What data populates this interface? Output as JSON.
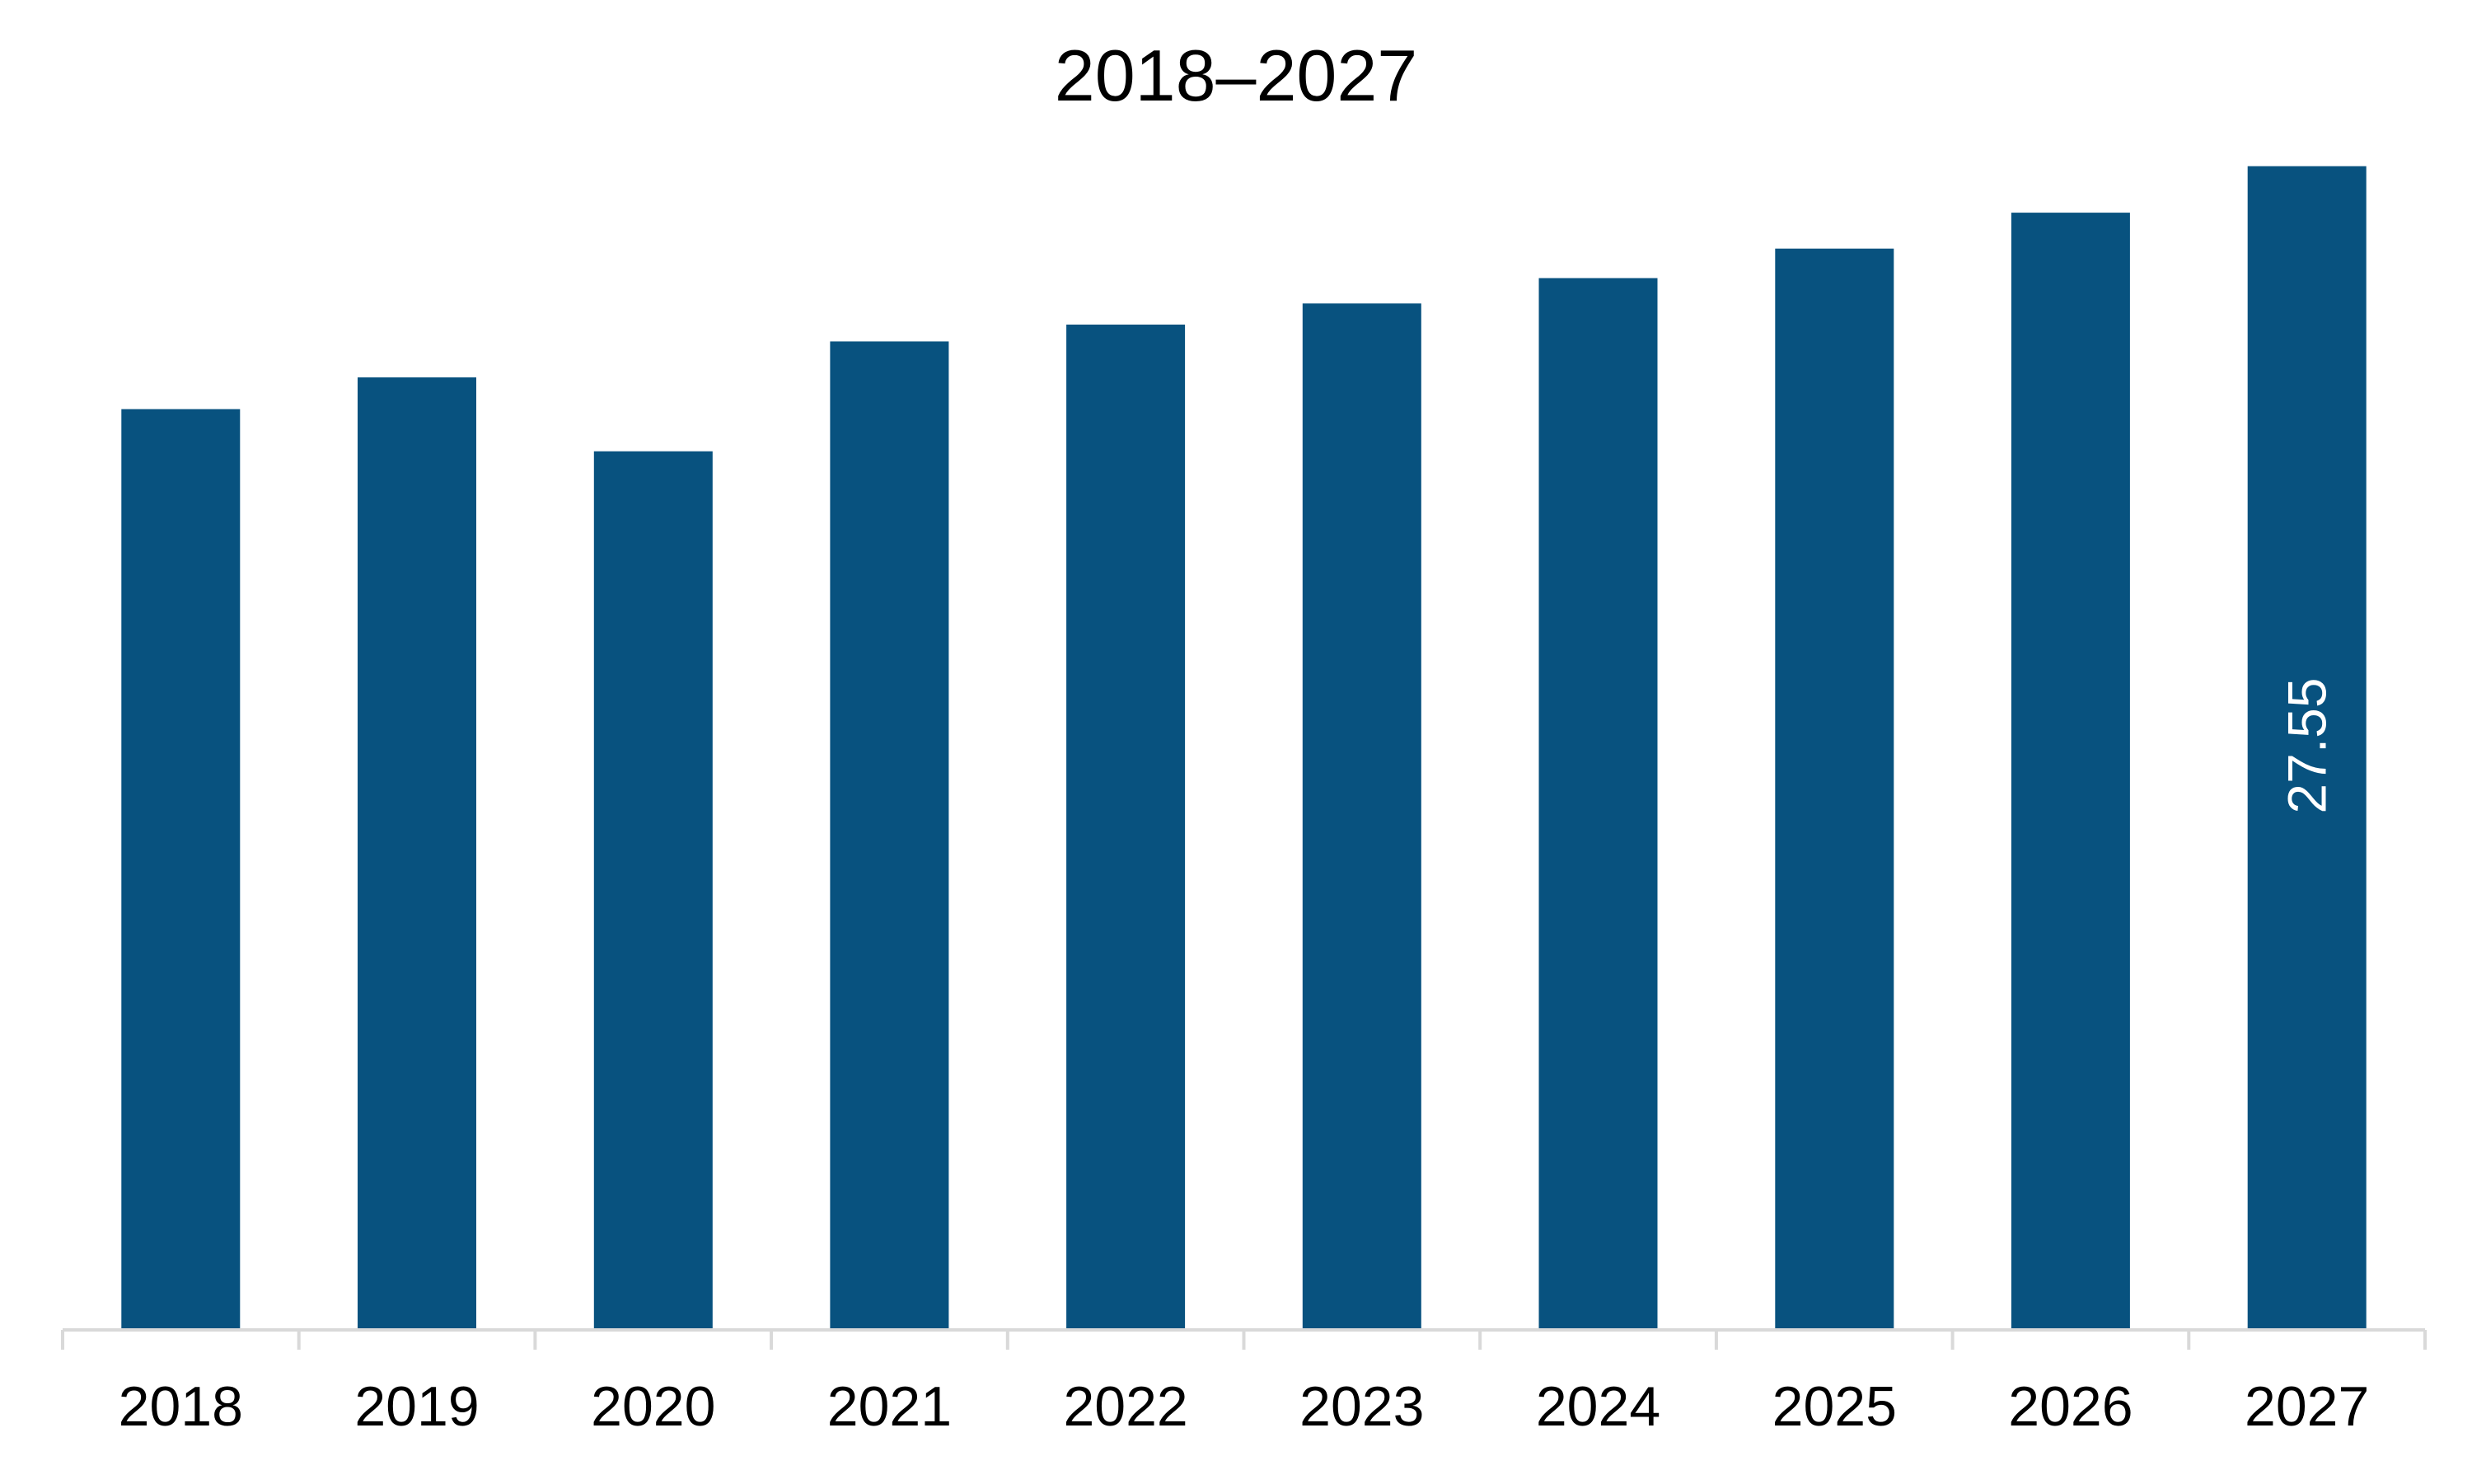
{
  "chart_data": {
    "type": "bar",
    "title": "2018–2027",
    "xlabel": "",
    "ylabel": "",
    "categories": [
      "2018",
      "2019",
      "2020",
      "2021",
      "2022",
      "2023",
      "2024",
      "2025",
      "2026",
      "2027"
    ],
    "values": [
      21.8,
      22.55,
      20.8,
      23.4,
      23.8,
      24.3,
      24.9,
      25.6,
      26.45,
      27.55
    ],
    "data_labels": [
      {
        "category": "2027",
        "text": "27.55"
      }
    ],
    "ylim": [
      0,
      28.5
    ],
    "grid": false,
    "legend": "none",
    "colors": {
      "bar": "#08527f",
      "axis": "#d9d9d9",
      "text": "#000000",
      "data_label": "#ffffff"
    }
  }
}
